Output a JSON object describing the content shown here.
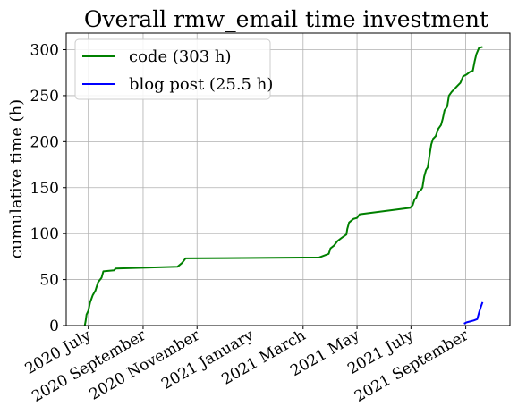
{
  "chart_data": {
    "type": "line",
    "title": "Overall rmw_email time investment",
    "xlabel": "",
    "ylabel": "cumulative time (h)",
    "x_ticks": [
      "2020-07-01",
      "2020-09-01",
      "2020-11-01",
      "2021-01-01",
      "2021-03-01",
      "2021-05-01",
      "2021-07-01",
      "2021-09-01"
    ],
    "x_tick_labels": [
      "2020 July",
      "2020 September",
      "2020 November",
      "2021 January",
      "2021 March",
      "2021 May",
      "2021 July",
      "2021 September"
    ],
    "xlim": [
      "2020-06-06",
      "2021-10-21"
    ],
    "ylim": [
      0,
      318
    ],
    "y_ticks": [
      0,
      50,
      100,
      150,
      200,
      250,
      300
    ],
    "grid": true,
    "legend_position": "top-left",
    "series": [
      {
        "name": "code (303 h)",
        "color": "#008000",
        "points": [
          [
            "2020-06-27",
            0
          ],
          [
            "2020-06-28",
            5
          ],
          [
            "2020-06-29",
            12
          ],
          [
            "2020-07-01",
            16
          ],
          [
            "2020-07-03",
            25
          ],
          [
            "2020-07-06",
            33
          ],
          [
            "2020-07-09",
            38
          ],
          [
            "2020-07-12",
            47
          ],
          [
            "2020-07-16",
            52
          ],
          [
            "2020-07-18",
            59
          ],
          [
            "2020-07-30",
            60
          ],
          [
            "2020-08-01",
            62
          ],
          [
            "2020-10-10",
            64
          ],
          [
            "2020-10-15",
            68
          ],
          [
            "2020-10-19",
            73
          ],
          [
            "2021-03-19",
            74
          ],
          [
            "2021-03-30",
            78
          ],
          [
            "2021-04-01",
            84
          ],
          [
            "2021-04-05",
            87
          ],
          [
            "2021-04-09",
            92
          ],
          [
            "2021-04-16",
            97
          ],
          [
            "2021-04-19",
            99
          ],
          [
            "2021-04-20",
            105
          ],
          [
            "2021-04-22",
            112
          ],
          [
            "2021-04-27",
            116
          ],
          [
            "2021-05-01",
            117
          ],
          [
            "2021-05-04",
            121
          ],
          [
            "2021-06-30",
            128
          ],
          [
            "2021-07-03",
            131
          ],
          [
            "2021-07-05",
            137
          ],
          [
            "2021-07-07",
            139
          ],
          [
            "2021-07-09",
            145
          ],
          [
            "2021-07-12",
            147
          ],
          [
            "2021-07-14",
            150
          ],
          [
            "2021-07-16",
            162
          ],
          [
            "2021-07-18",
            169
          ],
          [
            "2021-07-20",
            172
          ],
          [
            "2021-07-22",
            185
          ],
          [
            "2021-07-24",
            197
          ],
          [
            "2021-07-26",
            203
          ],
          [
            "2021-07-29",
            206
          ],
          [
            "2021-08-01",
            214
          ],
          [
            "2021-08-04",
            218
          ],
          [
            "2021-08-06",
            225
          ],
          [
            "2021-08-08",
            234
          ],
          [
            "2021-08-11",
            238
          ],
          [
            "2021-08-13",
            250
          ],
          [
            "2021-08-16",
            254
          ],
          [
            "2021-08-19",
            257
          ],
          [
            "2021-08-23",
            261
          ],
          [
            "2021-08-26",
            264
          ],
          [
            "2021-08-29",
            271
          ],
          [
            "2021-09-02",
            273
          ],
          [
            "2021-09-06",
            276
          ],
          [
            "2021-09-09",
            277
          ],
          [
            "2021-09-11",
            287
          ],
          [
            "2021-09-13",
            295
          ],
          [
            "2021-09-16",
            302
          ],
          [
            "2021-09-20",
            303
          ]
        ]
      },
      {
        "name": "blog post (25.5 h)",
        "color": "#0000ff",
        "points": [
          [
            "2021-08-30",
            2
          ],
          [
            "2021-09-02",
            3.5
          ],
          [
            "2021-09-06",
            4.5
          ],
          [
            "2021-09-10",
            5.5
          ],
          [
            "2021-09-14",
            7
          ],
          [
            "2021-09-16",
            14
          ],
          [
            "2021-09-18",
            20
          ],
          [
            "2021-09-20",
            25.5
          ]
        ]
      }
    ]
  }
}
